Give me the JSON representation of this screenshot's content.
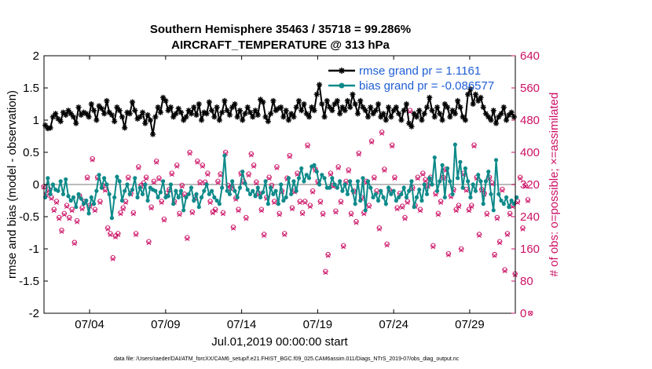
{
  "chart_data": {
    "type": "line",
    "title_line1": "Southern Hemisphere 35463 / 35718 = 99.286%",
    "title_line2": "AIRCRAFT_TEMPERATURE @ 313 hPa",
    "xlabel": "Jul.01,2019 00:00:00 start",
    "ylabel_left": "rmse and bias (model - observation)",
    "ylabel_right": "# of obs: o=possible; ×=assimilated",
    "footnote": "data file: /Users/raeder/DAI/ATM_forcXX/CAM6_setup/f.e21.FHIST_BGC.f09_025.CAM6assim.011/Diags_NTrS_2019-07/obs_diag_output.nc",
    "x_ticks": [
      "07/04",
      "07/09",
      "07/14",
      "07/19",
      "07/24",
      "07/29"
    ],
    "x_tick_days": [
      4,
      9,
      14,
      19,
      24,
      29
    ],
    "xlim_days": [
      1,
      32
    ],
    "ylim_left": [
      -2,
      2
    ],
    "y_ticks_left": [
      "-2",
      "-1.5",
      "-1",
      "-0.5",
      "0",
      "0.5",
      "1",
      "1.5",
      "2"
    ],
    "ylim_right": [
      0,
      640
    ],
    "y_ticks_right": [
      "0",
      "80",
      "160",
      "240",
      "320",
      "400",
      "480",
      "560",
      "640"
    ],
    "colors": {
      "rmse": "#000000",
      "bias": "#0e8a8a",
      "obs": "#cc1166",
      "zero_line": "#bbbbbb",
      "legend_text": "#1f5fd6"
    },
    "series": [
      {
        "name": "rmse grand pr = 1.1161",
        "marker": "asterisk",
        "values": [
          0.92,
          0.87,
          0.88,
          1.05,
          1.1,
          1.02,
          0.98,
          1.12,
          1.08,
          1.15,
          1.1,
          1.05,
          0.95,
          1.2,
          1.08,
          1.12,
          1.1,
          1.05,
          1.25,
          1.15,
          1.0,
          1.22,
          1.18,
          1.1,
          1.3,
          1.12,
          1.08,
          0.98,
          1.2,
          1.15,
          1.05,
          0.88,
          1.12,
          1.1,
          1.28,
          1.15,
          1.02,
          1.05,
          1.12,
          0.95,
          1.08,
          1.0,
          0.78,
          1.05,
          1.2,
          1.12,
          1.35,
          1.3,
          1.15,
          1.2,
          1.05,
          1.1,
          1.18,
          1.12,
          1.0,
          1.05,
          1.15,
          1.1,
          1.2,
          1.08,
          1.25,
          1.0,
          1.12,
          1.1,
          1.28,
          1.15,
          1.05,
          1.2,
          1.0,
          1.12,
          1.3,
          1.15,
          1.08,
          1.2,
          1.25,
          1.05,
          1.15,
          1.0,
          1.1,
          1.2,
          1.12,
          1.05,
          1.15,
          1.08,
          1.32,
          1.28,
          1.05,
          0.98,
          1.1,
          1.3,
          1.15,
          1.18,
          1.2,
          1.05,
          1.15,
          1.0,
          1.1,
          1.05,
          1.2,
          1.3,
          1.15,
          1.25,
          1.1,
          1.05,
          1.2,
          1.15,
          1.4,
          1.55,
          1.25,
          1.05,
          1.3,
          1.2,
          1.15,
          1.25,
          1.3,
          1.1,
          1.2,
          1.15,
          1.3,
          1.2,
          1.4,
          1.25,
          1.1,
          1.3,
          1.2,
          1.15,
          1.05,
          1.2,
          1.1,
          1.15,
          1.25,
          1.05,
          1.1,
          1.0,
          1.2,
          1.05,
          1.15,
          1.2,
          1.1,
          1.0,
          1.15,
          1.25,
          0.95,
          0.9,
          1.1,
          1.05,
          1.15,
          1.0,
          1.1,
          1.2,
          1.35,
          1.15,
          1.05,
          1.2,
          1.1,
          1.0,
          1.25,
          1.2,
          1.05,
          1.15,
          1.1,
          1.3,
          1.2,
          1.05,
          1.0,
          1.4,
          1.48,
          1.25,
          1.4,
          1.3,
          1.35,
          1.2,
          1.1,
          1.05,
          1.0,
          1.15,
          0.95,
          1.05,
          1.1,
          1.2,
          1.0,
          1.08,
          1.12,
          1.05
        ]
      },
      {
        "name": "bias grand pr = -0.086577",
        "marker": "dot",
        "values": [
          -0.2,
          0.1,
          -0.15,
          0.0,
          -0.08,
          -0.1,
          0.05,
          -0.15,
          0.08,
          -0.18,
          -0.25,
          -0.2,
          -0.35,
          -0.15,
          -0.22,
          -0.3,
          -0.25,
          -0.45,
          -0.2,
          -0.3,
          -0.1,
          0.15,
          -0.05,
          0.1,
          0.0,
          -0.15,
          -0.52,
          -0.2,
          0.12,
          0.05,
          -0.25,
          -0.1,
          0.0,
          -0.15,
          -0.08,
          0.1,
          -0.2,
          -0.05,
          -0.15,
          0.0,
          -0.25,
          -0.05,
          -0.08,
          -0.1,
          -0.2,
          -0.12,
          0.05,
          -0.2,
          -0.18,
          0.0,
          -0.3,
          -0.1,
          -0.2,
          -0.1,
          -0.4,
          -0.2,
          -0.15,
          -0.05,
          -0.25,
          -0.15,
          -0.35,
          -0.2,
          -0.1,
          0.0,
          -0.15,
          -0.1,
          -0.2,
          -0.25,
          -0.3,
          -0.05,
          0.45,
          -0.1,
          -0.15,
          0.05,
          -0.1,
          -0.2,
          -0.05,
          0.2,
          0.02,
          -0.08,
          -0.15,
          -0.1,
          -0.18,
          -0.05,
          -0.2,
          -0.12,
          0.05,
          -0.3,
          -0.05,
          -0.15,
          -0.1,
          -0.3,
          0.0,
          -0.25,
          -0.2,
          0.1,
          -0.15,
          0.05,
          -0.1,
          0.1,
          0.25,
          0.05,
          0.15,
          0.1,
          0.28,
          0.3,
          0.2,
          0.0,
          0.15,
          0.1,
          -0.05,
          -0.05,
          0.1,
          0.0,
          -0.05,
          0.05,
          -0.1,
          0.0,
          -0.15,
          0.05,
          -0.1,
          -0.3,
          0.05,
          -0.25,
          0.1,
          -0.4,
          0.05,
          -0.05,
          -0.2,
          -0.15,
          -0.25,
          -0.1,
          -0.2,
          -0.3,
          -0.05,
          -0.15,
          -0.1,
          -0.25,
          -0.2,
          -0.15,
          -0.05,
          -0.2,
          -0.1,
          0.05,
          -0.35,
          -0.2,
          -0.08,
          -0.25,
          0.0,
          -0.15,
          0.1,
          0.0,
          0.42,
          -0.1,
          0.05,
          0.3,
          -0.2,
          0.25,
          0.05,
          -0.15,
          0.62,
          0.1,
          0.35,
          -0.05,
          0.25,
          0.05,
          -0.2,
          0.0,
          -0.1,
          0.15,
          0.05,
          -0.3,
          0.05,
          0.2,
          -0.15,
          -0.4,
          0.38,
          -0.15,
          -0.25,
          -0.3,
          -0.2,
          -0.35,
          -0.25,
          -0.3,
          -0.2
        ]
      },
      {
        "name": "obs possible",
        "marker": "circle",
        "values": [
          315,
          296,
          308,
          288,
          258,
          278,
          238,
          206,
          248,
          268,
          238,
          258,
          176,
          230,
          292,
          262,
          278,
          338,
          268,
          384,
          258,
          338,
          278,
          318,
          308,
          212,
          198,
          138,
          192,
          198,
          250,
          262,
          278,
          338,
          298,
          250,
          198,
          364,
          318,
          324,
          338,
          178,
          264,
          328,
          378,
          336,
          278,
          234,
          298,
          308,
          348,
          278,
          368,
          248,
          318,
          296,
          188,
          400,
          252,
          288,
          378,
          326,
          368,
          326,
          348,
          278,
          252,
          258,
          328,
          346,
          250,
          400,
          318,
          312,
          214,
          286,
          258,
          348,
          328,
          238,
          346,
          396,
          368,
          326,
          298,
          258,
          196,
          288,
          338,
          318,
          278,
          364,
          248,
          304,
          198,
          336,
          392,
          262,
          304,
          348,
          278,
          250,
          278,
          418,
          268,
          304,
          358,
          328,
          278,
          248,
          104,
          146,
          348,
          318,
          254,
          364,
          278,
          168,
          328,
          356,
          248,
          304,
          228,
          398,
          288,
          250,
          328,
          268,
          428,
          338,
          304,
          212,
          450,
          358,
          172,
          306,
          418,
          338,
          262,
          298,
          266,
          238,
          278,
          504,
          312,
          268,
          338,
          258,
          348,
          332,
          318,
          338,
          168,
          298,
          248,
          278,
          338,
          358,
          148,
          292,
          308,
          258,
          268,
          160,
          348,
          308,
          258,
          268,
          418,
          338,
          196,
          308,
          298,
          248,
          338,
          324,
          146,
          238,
          178,
          308,
          108,
          198,
          248,
          268,
          98,
          278,
          338,
          212,
          318,
          282,
          0
        ]
      },
      {
        "name": "obs assimilated",
        "marker": "x",
        "values": [
          313,
          293,
          305,
          285,
          255,
          275,
          235,
          203,
          245,
          265,
          235,
          255,
          173,
          227,
          289,
          259,
          275,
          335,
          265,
          381,
          255,
          335,
          275,
          315,
          305,
          209,
          195,
          135,
          189,
          195,
          247,
          259,
          275,
          335,
          295,
          247,
          195,
          361,
          315,
          321,
          335,
          175,
          261,
          325,
          375,
          333,
          275,
          231,
          295,
          305,
          345,
          275,
          365,
          245,
          315,
          293,
          185,
          397,
          249,
          285,
          375,
          323,
          365,
          323,
          345,
          275,
          249,
          255,
          325,
          343,
          247,
          397,
          315,
          309,
          211,
          283,
          255,
          345,
          325,
          235,
          343,
          393,
          365,
          323,
          295,
          255,
          193,
          285,
          335,
          315,
          275,
          361,
          245,
          301,
          195,
          333,
          389,
          259,
          301,
          345,
          275,
          247,
          275,
          415,
          265,
          301,
          355,
          325,
          275,
          245,
          101,
          143,
          345,
          315,
          251,
          361,
          275,
          165,
          325,
          353,
          245,
          301,
          225,
          395,
          285,
          247,
          325,
          265,
          425,
          335,
          301,
          209,
          447,
          355,
          169,
          303,
          415,
          335,
          259,
          295,
          263,
          235,
          275,
          501,
          309,
          265,
          335,
          255,
          345,
          329,
          315,
          335,
          165,
          295,
          245,
          275,
          335,
          355,
          145,
          289,
          305,
          255,
          265,
          157,
          345,
          305,
          255,
          265,
          415,
          335,
          193,
          305,
          295,
          245,
          335,
          321,
          143,
          235,
          175,
          305,
          105,
          195,
          245,
          265,
          95,
          275,
          335,
          209,
          315,
          279,
          0
        ]
      }
    ],
    "obs_x_offset": -0.1,
    "legend_position": "top-right"
  }
}
